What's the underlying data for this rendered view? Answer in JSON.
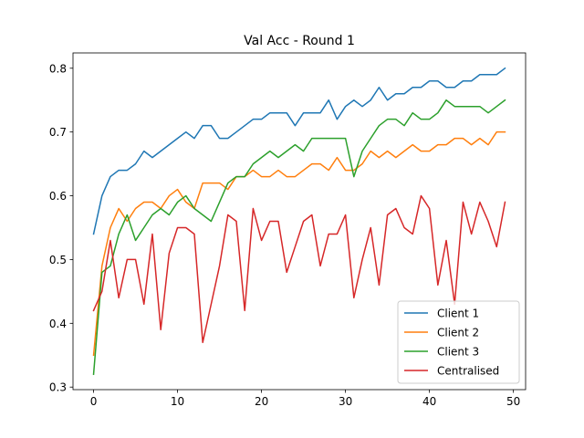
{
  "chart_data": {
    "type": "line",
    "title": "Val Acc - Round 1",
    "xlabel": "",
    "ylabel": "",
    "xlim": [
      -2.45,
      51.45
    ],
    "ylim": [
      0.296,
      0.824
    ],
    "xticks": [
      0,
      10,
      20,
      30,
      40,
      50
    ],
    "yticks": [
      0.3,
      0.4,
      0.5,
      0.6,
      0.7,
      0.8
    ],
    "ytick_labels": [
      "0.3",
      "0.4",
      "0.5",
      "0.6",
      "0.7",
      "0.8"
    ],
    "grid": false,
    "legend_position": "lower-right",
    "x": [
      0,
      1,
      2,
      3,
      4,
      5,
      6,
      7,
      8,
      9,
      10,
      11,
      12,
      13,
      14,
      15,
      16,
      17,
      18,
      19,
      20,
      21,
      22,
      23,
      24,
      25,
      26,
      27,
      28,
      29,
      30,
      31,
      32,
      33,
      34,
      35,
      36,
      37,
      38,
      39,
      40,
      41,
      42,
      43,
      44,
      45,
      46,
      47,
      48,
      49
    ],
    "series": [
      {
        "name": "Client 1",
        "color": "#1f77b4",
        "values": [
          0.54,
          0.6,
          0.63,
          0.64,
          0.64,
          0.65,
          0.67,
          0.66,
          0.67,
          0.68,
          0.69,
          0.7,
          0.69,
          0.71,
          0.71,
          0.69,
          0.69,
          0.7,
          0.71,
          0.72,
          0.72,
          0.73,
          0.73,
          0.73,
          0.71,
          0.73,
          0.73,
          0.73,
          0.75,
          0.72,
          0.74,
          0.75,
          0.74,
          0.75,
          0.77,
          0.75,
          0.76,
          0.76,
          0.77,
          0.77,
          0.78,
          0.78,
          0.77,
          0.77,
          0.78,
          0.78,
          0.79,
          0.79,
          0.79,
          0.8
        ]
      },
      {
        "name": "Client 2",
        "color": "#ff7f0e",
        "values": [
          0.35,
          0.49,
          0.55,
          0.58,
          0.56,
          0.58,
          0.59,
          0.59,
          0.58,
          0.6,
          0.61,
          0.59,
          0.58,
          0.62,
          0.62,
          0.62,
          0.61,
          0.63,
          0.63,
          0.64,
          0.63,
          0.63,
          0.64,
          0.63,
          0.63,
          0.64,
          0.65,
          0.65,
          0.64,
          0.66,
          0.64,
          0.64,
          0.65,
          0.67,
          0.66,
          0.67,
          0.66,
          0.67,
          0.68,
          0.67,
          0.67,
          0.68,
          0.68,
          0.69,
          0.69,
          0.68,
          0.69,
          0.68,
          0.7,
          0.7
        ]
      },
      {
        "name": "Client 3",
        "color": "#2ca02c",
        "values": [
          0.32,
          0.48,
          0.49,
          0.54,
          0.57,
          0.53,
          0.55,
          0.57,
          0.58,
          0.57,
          0.59,
          0.6,
          0.58,
          0.57,
          0.56,
          0.59,
          0.62,
          0.63,
          0.63,
          0.65,
          0.66,
          0.67,
          0.66,
          0.67,
          0.68,
          0.67,
          0.69,
          0.69,
          0.69,
          0.69,
          0.69,
          0.63,
          0.67,
          0.69,
          0.71,
          0.72,
          0.72,
          0.71,
          0.73,
          0.72,
          0.72,
          0.73,
          0.75,
          0.74,
          0.74,
          0.74,
          0.74,
          0.73,
          0.74,
          0.75
        ]
      },
      {
        "name": "Centralised",
        "color": "#d62728",
        "values": [
          0.42,
          0.45,
          0.53,
          0.44,
          0.5,
          0.5,
          0.43,
          0.54,
          0.39,
          0.51,
          0.55,
          0.55,
          0.54,
          0.37,
          0.43,
          0.49,
          0.57,
          0.56,
          0.42,
          0.58,
          0.53,
          0.56,
          0.56,
          0.48,
          0.52,
          0.56,
          0.57,
          0.49,
          0.54,
          0.54,
          0.57,
          0.44,
          0.5,
          0.55,
          0.46,
          0.57,
          0.58,
          0.55,
          0.54,
          0.6,
          0.58,
          0.46,
          0.53,
          0.43,
          0.59,
          0.54,
          0.59,
          0.56,
          0.52,
          0.59
        ]
      }
    ]
  }
}
